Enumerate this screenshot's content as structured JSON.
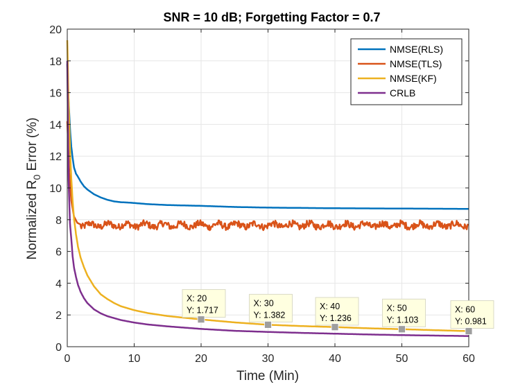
{
  "chart_data": {
    "type": "line",
    "title": "SNR = 10 dB; Forgetting Factor = 0.7",
    "xlabel": "Time (Min)",
    "ylabel": {
      "prefix": "Normalized R",
      "subscript": "0",
      "suffix": " Error (%)"
    },
    "xlim": [
      0,
      60
    ],
    "ylim": [
      0,
      20
    ],
    "xticks": [
      0,
      10,
      20,
      30,
      40,
      50,
      60
    ],
    "yticks": [
      0,
      2,
      4,
      6,
      8,
      10,
      12,
      14,
      16,
      18,
      20
    ],
    "grid": true,
    "legend_position": "top-right",
    "series": [
      {
        "name": "NMSE(RLS)",
        "color": "#0072BD",
        "x": [
          0,
          0.2,
          0.4,
          0.6,
          0.8,
          1,
          1.3,
          1.6,
          2,
          2.5,
          3,
          4,
          5,
          6,
          7,
          8,
          9,
          10,
          12,
          15,
          20,
          25,
          30,
          35,
          40,
          45,
          50,
          55,
          60
        ],
        "y": [
          17.8,
          15.5,
          13.8,
          12.6,
          11.9,
          11.3,
          10.9,
          10.7,
          10.4,
          10.1,
          9.9,
          9.6,
          9.4,
          9.25,
          9.15,
          9.1,
          9.08,
          9.05,
          8.98,
          8.92,
          8.87,
          8.8,
          8.76,
          8.74,
          8.72,
          8.71,
          8.7,
          8.69,
          8.68
        ]
      },
      {
        "name": "NMSE(TLS)",
        "color": "#D95319",
        "mean": 7.65,
        "amplitude": 0.3,
        "x": [
          0,
          0.3,
          0.6,
          1,
          1.5,
          2
        ],
        "y": [
          14.2,
          11.0,
          9.2,
          8.2,
          7.8,
          7.7
        ]
      },
      {
        "name": "NMSE(KF)",
        "color": "#EDB120",
        "x": [
          0,
          0.2,
          0.4,
          0.6,
          0.8,
          1,
          1.3,
          1.6,
          2,
          2.5,
          3,
          4,
          5,
          6,
          7,
          8,
          10,
          12,
          15,
          20,
          25,
          30,
          35,
          40,
          45,
          50,
          55,
          60
        ],
        "y": [
          19.3,
          15.5,
          12.6,
          10.6,
          9.2,
          8.1,
          7.1,
          6.3,
          5.6,
          5.0,
          4.5,
          3.8,
          3.3,
          3.0,
          2.75,
          2.55,
          2.3,
          2.12,
          1.93,
          1.717,
          1.53,
          1.382,
          1.3,
          1.236,
          1.16,
          1.103,
          1.04,
          0.981
        ]
      },
      {
        "name": "CRLB",
        "color": "#7E2F8E",
        "x": [
          0,
          0.2,
          0.4,
          0.6,
          0.8,
          1,
          1.3,
          1.6,
          2,
          2.5,
          3,
          4,
          5,
          6,
          8,
          10,
          12,
          15,
          20,
          25,
          30,
          35,
          40,
          45,
          50,
          55,
          60
        ],
        "y": [
          18.0,
          10.5,
          7.8,
          6.8,
          5.7,
          5.0,
          4.4,
          3.9,
          3.45,
          3.05,
          2.75,
          2.35,
          2.1,
          1.92,
          1.68,
          1.52,
          1.4,
          1.28,
          1.12,
          1.0,
          0.93,
          0.87,
          0.82,
          0.77,
          0.73,
          0.7,
          0.67
        ]
      }
    ],
    "annotations": [
      {
        "x_label": "X: 20",
        "y_label": "Y: 1.717",
        "x": 20,
        "y": 1.717,
        "box_x": 17.2,
        "box_y": 3.6
      },
      {
        "x_label": "X: 30",
        "y_label": "Y: 1.382",
        "x": 30,
        "y": 1.382,
        "box_x": 27.2,
        "box_y": 3.3
      },
      {
        "x_label": "X: 40",
        "y_label": "Y: 1.236",
        "x": 40,
        "y": 1.236,
        "box_x": 37.1,
        "box_y": 3.1
      },
      {
        "x_label": "X: 50",
        "y_label": "Y: 1.103",
        "x": 50,
        "y": 1.103,
        "box_x": 47.1,
        "box_y": 3.0
      },
      {
        "x_label": "X: 60",
        "y_label": "Y: 0.981",
        "x": 60,
        "y": 0.981,
        "box_x": 57.3,
        "box_y": 2.9
      }
    ]
  }
}
